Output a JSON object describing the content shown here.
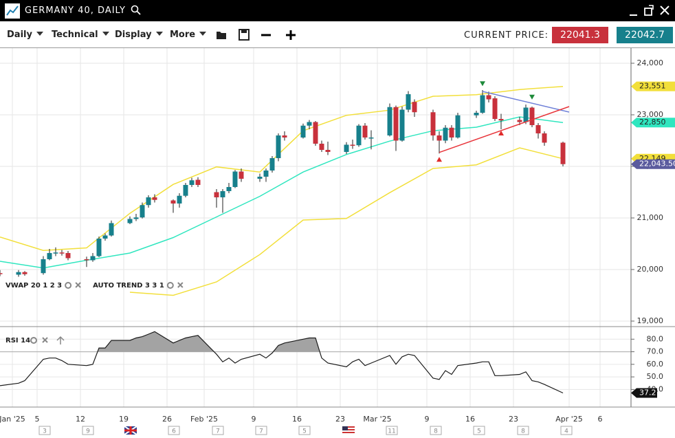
{
  "header": {
    "title": "GERMANY 40, DAILY"
  },
  "toolbar": {
    "menus": [
      "Daily",
      "Technical",
      "Display",
      "More"
    ],
    "current_price_label": "CURRENT PRICE:",
    "bid": 22041.3,
    "ask": 22042.7
  },
  "event_counts": [
    "3",
    "9",
    "6",
    "7",
    "7",
    "5",
    "11",
    "8",
    "5",
    "8",
    "4"
  ],
  "chart_data": [
    {
      "type": "candlestick",
      "x": [
        "2024-12-30",
        "2025-01-02",
        "2025-01-03",
        "2025-01-06",
        "2025-01-07",
        "2025-01-08",
        "2025-01-09",
        "2025-01-10",
        "2025-01-13",
        "2025-01-14",
        "2025-01-15",
        "2025-01-16",
        "2025-01-17",
        "2025-01-20",
        "2025-01-21",
        "2025-01-22",
        "2025-01-23",
        "2025-01-24",
        "2025-01-27",
        "2025-01-28",
        "2025-01-29",
        "2025-01-30",
        "2025-01-31",
        "2025-02-03",
        "2025-02-04",
        "2025-02-05",
        "2025-02-06",
        "2025-02-07",
        "2025-02-10",
        "2025-02-11",
        "2025-02-12",
        "2025-02-13",
        "2025-02-14",
        "2025-02-17",
        "2025-02-18",
        "2025-02-19",
        "2025-02-20",
        "2025-02-21",
        "2025-02-24",
        "2025-02-25",
        "2025-02-26",
        "2025-02-27",
        "2025-02-28",
        "2025-03-03",
        "2025-03-04",
        "2025-03-05",
        "2025-03-06",
        "2025-03-07",
        "2025-03-10",
        "2025-03-11",
        "2025-03-12",
        "2025-03-13",
        "2025-03-14",
        "2025-03-17",
        "2025-03-18",
        "2025-03-19",
        "2025-03-20",
        "2025-03-21",
        "2025-03-24",
        "2025-03-25",
        "2025-03-26",
        "2025-03-27",
        "2025-03-28",
        "2025-03-31"
      ],
      "open": [
        19930,
        19900,
        19950,
        19930,
        20200,
        20320,
        20330,
        20320,
        20200,
        20180,
        20260,
        20600,
        20660,
        20900,
        20980,
        21010,
        21250,
        21400,
        21340,
        21280,
        21430,
        21640,
        21740,
        21500,
        21400,
        21520,
        21600,
        21900,
        21760,
        21800,
        21920,
        22160,
        22600,
        22560,
        22790,
        22860,
        22440,
        22320,
        22280,
        22420,
        22410,
        22790,
        22560,
        22600,
        23150,
        22500,
        23100,
        23250,
        23050,
        22600,
        22500,
        22750,
        22560,
        22990,
        23040,
        23380,
        23320,
        22920,
        22900,
        22860,
        23140,
        22800,
        22640,
        22460
      ],
      "high": [
        19990,
        19990,
        19970,
        20260,
        20400,
        20430,
        20380,
        20360,
        20250,
        20320,
        20640,
        20700,
        20950,
        21030,
        21080,
        21300,
        21440,
        21460,
        21360,
        21480,
        21680,
        21780,
        21790,
        21560,
        21560,
        21680,
        21930,
        21960,
        21860,
        21960,
        22200,
        22640,
        22680,
        22830,
        22900,
        22880,
        22500,
        22480,
        22470,
        22520,
        22820,
        22840,
        22700,
        23220,
        23180,
        23160,
        23460,
        23300,
        23100,
        22680,
        22800,
        22800,
        23040,
        23080,
        23480,
        23450,
        23360,
        23020,
        22960,
        23200,
        23160,
        22840,
        22680,
        22480
      ],
      "low": [
        19870,
        19860,
        19880,
        19900,
        20180,
        20260,
        20270,
        20180,
        20050,
        20150,
        20240,
        20560,
        20640,
        20880,
        20940,
        20990,
        21200,
        21300,
        21100,
        21200,
        21400,
        21600,
        21600,
        21200,
        21100,
        21480,
        21580,
        21700,
        21700,
        21700,
        21880,
        22100,
        22500,
        22540,
        22720,
        22400,
        22280,
        22220,
        22240,
        22340,
        22380,
        22520,
        22330,
        22580,
        22300,
        22480,
        23050,
        22960,
        22500,
        22250,
        22450,
        22500,
        22540,
        22940,
        23020,
        23240,
        22880,
        22720,
        22800,
        22820,
        22760,
        22540,
        22400,
        22000
      ],
      "close": [
        19910,
        19950,
        19910,
        20200,
        20320,
        20330,
        20320,
        20220,
        20180,
        20260,
        20600,
        20660,
        20900,
        20980,
        21010,
        21250,
        21400,
        21350,
        21280,
        21430,
        21640,
        21730,
        21640,
        21400,
        21520,
        21600,
        21900,
        21760,
        21800,
        21920,
        22160,
        22600,
        22560,
        22790,
        22860,
        22440,
        22320,
        22280,
        22420,
        22410,
        22790,
        22560,
        22560,
        23150,
        22500,
        23100,
        23400,
        23050,
        22600,
        22500,
        22750,
        22560,
        22990,
        23040,
        23380,
        23300,
        22920,
        22890,
        22860,
        23140,
        22800,
        22640,
        22460,
        22043.5
      ],
      "up_color": "#17808c",
      "down_color": "#c8313c",
      "overlays": [
        {
          "color": "#f2df3a",
          "x": [
            "2024-12-30",
            "2025-01-06",
            "2025-01-13",
            "2025-01-20",
            "2025-01-27",
            "2025-02-03",
            "2025-02-10",
            "2025-02-17",
            "2025-02-24",
            "2025-03-03",
            "2025-03-10",
            "2025-03-17",
            "2025-03-24",
            "2025-03-31"
          ],
          "values": [
            20630,
            20370,
            20420,
            21090,
            21650,
            21990,
            21890,
            22690,
            22990,
            23090,
            23360,
            23390,
            23490,
            23551
          ]
        },
        {
          "color": "#2fe6bf",
          "x": [
            "2024-12-30",
            "2025-01-06",
            "2025-01-13",
            "2025-01-20",
            "2025-01-27",
            "2025-02-03",
            "2025-02-10",
            "2025-02-17",
            "2025-02-24",
            "2025-03-03",
            "2025-03-10",
            "2025-03-17",
            "2025-03-24",
            "2025-03-31"
          ],
          "values": [
            20160,
            20030,
            20180,
            20320,
            20620,
            21020,
            21420,
            21890,
            22230,
            22490,
            22690,
            22760,
            22960,
            22850
          ]
        },
        {
          "color": "#f2df3a",
          "x": [
            "2024-12-30",
            "2025-01-06",
            "2025-01-13",
            "2025-01-20",
            "2025-01-27",
            "2025-02-03",
            "2025-02-10",
            "2025-02-17",
            "2025-02-24",
            "2025-03-03",
            "2025-03-10",
            "2025-03-17",
            "2025-03-24",
            "2025-03-31"
          ],
          "values": [
            null,
            null,
            null,
            19560,
            19500,
            19760,
            20290,
            20960,
            20990,
            21490,
            21960,
            22030,
            22360,
            22149
          ]
        }
      ],
      "trendlines": [
        {
          "color": "#6f80d8",
          "x": [
            "2025-03-18",
            "2025-04-01"
          ],
          "values": [
            23453,
            23053
          ]
        },
        {
          "color": "#e8343a",
          "x": [
            "2025-03-11",
            "2025-04-01"
          ],
          "values": [
            22270,
            23160
          ]
        }
      ],
      "signals": [
        {
          "x": "2025-03-18",
          "value": 23610,
          "color": "#1e8a3a",
          "direction": "down"
        },
        {
          "x": "2025-03-26",
          "value": 23350,
          "color": "#1e8a3a",
          "direction": "down"
        },
        {
          "x": "2025-03-11",
          "value": 22130,
          "color": "#e02a2a",
          "direction": "up"
        },
        {
          "x": "2025-03-21",
          "value": 22640,
          "color": "#e02a2a",
          "direction": "up"
        }
      ],
      "price_labels": [
        {
          "value": 23551,
          "label": "23,551",
          "color": "#f2df3a"
        },
        {
          "value": 22850,
          "label": "22,850",
          "color": "#2fe6bf"
        },
        {
          "value": 22149,
          "label": "22,149",
          "color": "#f2df3a"
        },
        {
          "value": 22043.5,
          "label": "22,043.50",
          "color": "#5b5b9e"
        }
      ],
      "indicator_labels": [
        "VWAP 20 1 2 3",
        "AUTO TREND 3 3 1"
      ],
      "xlim": [
        "2024-12-30",
        "2025-04-11"
      ],
      "xticks": [
        {
          "value": "2025-01-01",
          "label": "Jan '25"
        },
        {
          "value": "2025-01-05",
          "label": "5"
        },
        {
          "value": "2025-01-12",
          "label": "12"
        },
        {
          "value": "2025-01-19",
          "label": "19"
        },
        {
          "value": "2025-01-26",
          "label": "26"
        },
        {
          "value": "2025-02-01",
          "label": "Feb '25"
        },
        {
          "value": "2025-02-09",
          "label": "9"
        },
        {
          "value": "2025-02-16",
          "label": "16"
        },
        {
          "value": "2025-02-23",
          "label": "23"
        },
        {
          "value": "2025-03-01",
          "label": "Mar '25"
        },
        {
          "value": "2025-03-09",
          "label": "9"
        },
        {
          "value": "2025-03-16",
          "label": "16"
        },
        {
          "value": "2025-03-23",
          "label": "23"
        },
        {
          "value": "2025-04-01",
          "label": "Apr '25"
        },
        {
          "value": "2025-04-06",
          "label": "6"
        }
      ],
      "ylim": [
        18893,
        24293
      ],
      "yticks": [
        {
          "value": 24000,
          "label": "24,000"
        },
        {
          "value": 23000,
          "label": "23,000"
        },
        {
          "value": 22000,
          "label": "22,000"
        },
        {
          "value": 21000,
          "label": "21,000"
        },
        {
          "value": 20000,
          "label": "20,000"
        },
        {
          "value": 19000,
          "label": "19,000"
        }
      ],
      "grid": true
    },
    {
      "type": "line",
      "title": "RSI 14",
      "x": [
        "2024-12-30",
        "2025-01-02",
        "2025-01-03",
        "2025-01-06",
        "2025-01-07",
        "2025-01-08",
        "2025-01-09",
        "2025-01-10",
        "2025-01-13",
        "2025-01-14",
        "2025-01-15",
        "2025-01-16",
        "2025-01-17",
        "2025-01-20",
        "2025-01-21",
        "2025-01-22",
        "2025-01-23",
        "2025-01-24",
        "2025-01-27",
        "2025-01-28",
        "2025-01-29",
        "2025-01-30",
        "2025-01-31",
        "2025-02-03",
        "2025-02-04",
        "2025-02-05",
        "2025-02-06",
        "2025-02-07",
        "2025-02-10",
        "2025-02-11",
        "2025-02-12",
        "2025-02-13",
        "2025-02-14",
        "2025-02-17",
        "2025-02-18",
        "2025-02-19",
        "2025-02-20",
        "2025-02-21",
        "2025-02-24",
        "2025-02-25",
        "2025-02-26",
        "2025-02-27",
        "2025-02-28",
        "2025-03-03",
        "2025-03-04",
        "2025-03-05",
        "2025-03-06",
        "2025-03-07",
        "2025-03-10",
        "2025-03-11",
        "2025-03-12",
        "2025-03-13",
        "2025-03-14",
        "2025-03-17",
        "2025-03-18",
        "2025-03-19",
        "2025-03-20",
        "2025-03-21",
        "2025-03-24",
        "2025-03-25",
        "2025-03-26",
        "2025-03-27",
        "2025-03-28",
        "2025-03-31"
      ],
      "values": [
        43,
        45,
        47,
        64,
        65,
        65,
        63,
        60,
        59,
        60,
        73,
        73,
        79,
        79,
        81,
        82,
        84,
        86,
        77,
        79,
        81,
        82,
        83,
        68,
        62,
        65,
        61,
        64,
        68,
        65,
        69,
        75,
        77,
        80,
        81,
        81,
        65,
        61,
        58,
        62,
        64,
        59,
        61,
        67,
        60,
        66,
        68,
        67,
        49,
        48,
        55,
        52,
        59,
        61,
        62,
        62,
        51,
        51,
        52,
        54,
        47,
        46,
        44,
        37.2
      ],
      "color": "#1a1a1a",
      "fill_color": "#a3a3a3",
      "level": 70,
      "xlim": [
        "2024-12-30",
        "2025-04-11"
      ],
      "ylim": [
        26,
        90
      ],
      "yticks": [
        {
          "value": 80,
          "label": "80.0"
        },
        {
          "value": 70,
          "label": "70.0"
        },
        {
          "value": 60,
          "label": "60.0"
        },
        {
          "value": 50,
          "label": "50.0"
        },
        {
          "value": 40,
          "label": "40.0"
        }
      ],
      "grid": true
    }
  ]
}
